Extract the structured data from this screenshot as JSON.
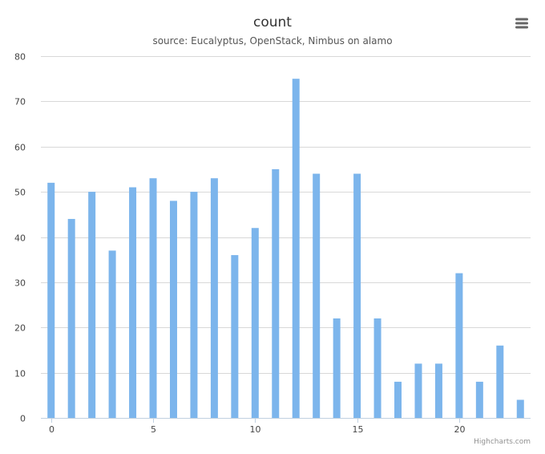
{
  "chart_data": {
    "type": "bar",
    "title": "count",
    "subtitle": "source: Eucalyptus, OpenStack, Nimbus on alamo",
    "xlabel": "",
    "ylabel": "",
    "x": [
      0,
      1,
      2,
      3,
      4,
      5,
      6,
      7,
      8,
      9,
      10,
      11,
      12,
      13,
      14,
      15,
      16,
      17,
      18,
      19,
      20,
      21,
      22,
      23
    ],
    "values": [
      52,
      44,
      50,
      37,
      51,
      53,
      48,
      50,
      53,
      36,
      42,
      55,
      75,
      54,
      22,
      54,
      22,
      8,
      12,
      12,
      32,
      8,
      16,
      4
    ],
    "xlim": [
      0,
      23
    ],
    "ylim": [
      0,
      80
    ],
    "x_ticks": [
      0,
      5,
      10,
      15,
      20
    ],
    "y_ticks": [
      0,
      10,
      20,
      30,
      40,
      50,
      60,
      70,
      80
    ],
    "grid": "horizontal",
    "legend": "none",
    "bar_color": "#7cb5ec",
    "grid_color": "#d8d8d8",
    "axis_color": "#c0d0e0"
  },
  "credits": "Highcharts.com",
  "menu_icon": "hamburger-menu-icon"
}
